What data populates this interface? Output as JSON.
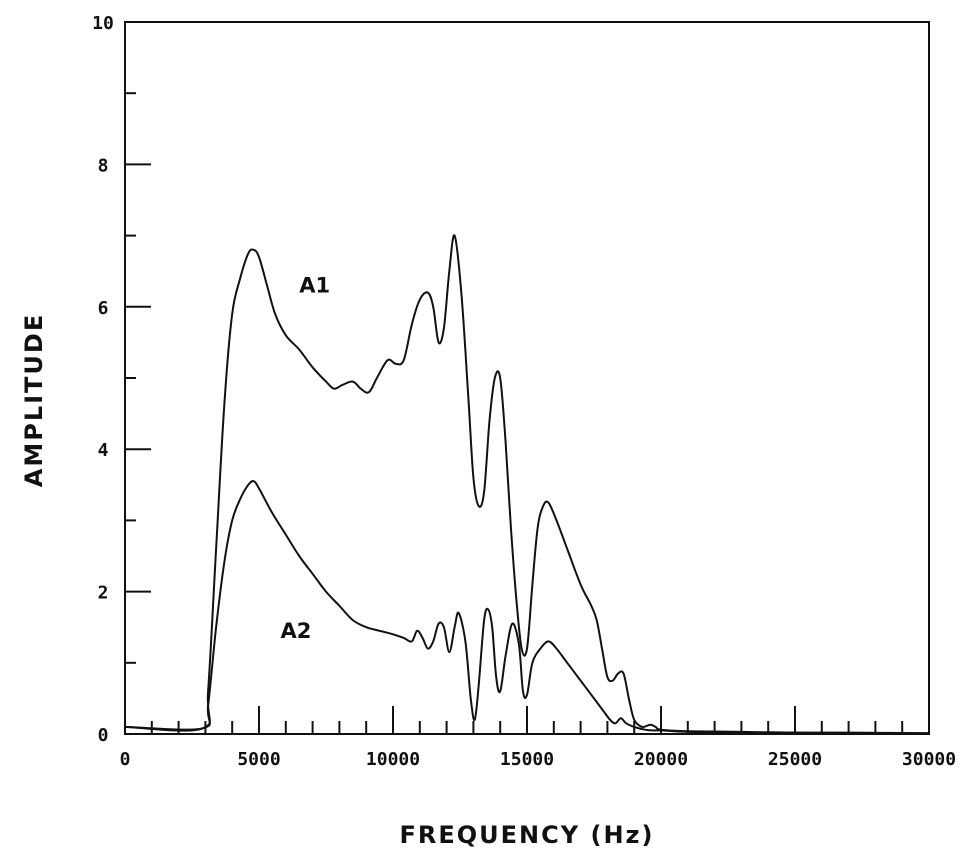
{
  "chart_data": {
    "type": "line",
    "title": "",
    "xlabel": "FREQUENCY (Hz)",
    "ylabel": "AMPLITUDE",
    "xlim": [
      0,
      30000
    ],
    "ylim": [
      0,
      10
    ],
    "x_major_ticks": [
      0,
      5000,
      10000,
      15000,
      20000,
      25000,
      30000
    ],
    "x_tick_labels": [
      "0",
      "5000",
      "10000",
      "15000",
      "20000",
      "25000",
      "30000"
    ],
    "x_minor_step": 1000,
    "y_major_ticks": [
      0,
      2,
      4,
      6,
      8,
      10
    ],
    "y_tick_labels": [
      "0",
      "2",
      "4",
      "6",
      "8",
      "10"
    ],
    "y_minor_step": 1,
    "grid": false,
    "series": [
      {
        "name": "A1",
        "label_at": [
          6500,
          6.2
        ],
        "x": [
          0,
          2900,
          3100,
          3400,
          3700,
          4000,
          4300,
          4600,
          4800,
          5000,
          5300,
          5600,
          6000,
          6500,
          7000,
          7500,
          7800,
          8100,
          8500,
          8800,
          9100,
          9400,
          9800,
          10100,
          10400,
          10700,
          11000,
          11300,
          11500,
          11700,
          11900,
          12100,
          12300,
          12550,
          12800,
          13000,
          13200,
          13400,
          13600,
          13800,
          14000,
          14200,
          14400,
          14600,
          14800,
          15000,
          15200,
          15400,
          15600,
          15800,
          16100,
          16500,
          17000,
          17400,
          17600,
          17800,
          18000,
          18200,
          18400,
          18600,
          18800,
          19000,
          19300,
          19600,
          19800,
          20000,
          21000,
          23000,
          25000,
          27000,
          30000
        ],
        "y": [
          0.1,
          0.08,
          0.6,
          2.6,
          4.6,
          5.9,
          6.4,
          6.75,
          6.8,
          6.7,
          6.3,
          5.9,
          5.6,
          5.4,
          5.15,
          4.95,
          4.85,
          4.9,
          4.95,
          4.85,
          4.8,
          5.0,
          5.25,
          5.2,
          5.25,
          5.75,
          6.1,
          6.2,
          6.0,
          5.5,
          5.7,
          6.5,
          7.0,
          6.2,
          4.8,
          3.6,
          3.2,
          3.4,
          4.4,
          5.0,
          5.0,
          4.1,
          2.9,
          1.9,
          1.2,
          1.2,
          2.1,
          2.9,
          3.2,
          3.25,
          3.0,
          2.6,
          2.1,
          1.8,
          1.6,
          1.2,
          0.8,
          0.75,
          0.85,
          0.85,
          0.5,
          0.2,
          0.1,
          0.13,
          0.1,
          0.06,
          0.04,
          0.03,
          0.02,
          0.02,
          0.01
        ]
      },
      {
        "name": "A2",
        "label_at": [
          5800,
          1.35
        ],
        "x": [
          0,
          2900,
          3100,
          3400,
          3700,
          4000,
          4300,
          4600,
          4800,
          5000,
          5500,
          6000,
          6500,
          7000,
          7500,
          8000,
          8500,
          9000,
          9500,
          10000,
          10400,
          10700,
          10900,
          11100,
          11300,
          11500,
          11700,
          11900,
          12100,
          12300,
          12450,
          12700,
          12900,
          13050,
          13200,
          13400,
          13550,
          13700,
          13850,
          14000,
          14200,
          14450,
          14700,
          14850,
          15000,
          15200,
          15500,
          15800,
          16100,
          16500,
          17000,
          17400,
          17800,
          18100,
          18300,
          18500,
          18700,
          19000,
          19400,
          19700,
          20000,
          21000,
          23000,
          25000,
          27000,
          30000
        ],
        "y": [
          0.1,
          0.08,
          0.4,
          1.5,
          2.4,
          3.0,
          3.3,
          3.5,
          3.55,
          3.45,
          3.1,
          2.8,
          2.5,
          2.25,
          2.0,
          1.8,
          1.6,
          1.5,
          1.45,
          1.4,
          1.35,
          1.3,
          1.45,
          1.35,
          1.2,
          1.3,
          1.55,
          1.5,
          1.15,
          1.5,
          1.7,
          1.3,
          0.5,
          0.2,
          0.7,
          1.6,
          1.75,
          1.5,
          0.8,
          0.6,
          1.1,
          1.55,
          1.25,
          0.6,
          0.55,
          1.0,
          1.2,
          1.3,
          1.2,
          1.0,
          0.75,
          0.55,
          0.35,
          0.2,
          0.15,
          0.22,
          0.15,
          0.1,
          0.06,
          0.05,
          0.05,
          0.03,
          0.02,
          0.02,
          0.01,
          0.01
        ]
      }
    ]
  }
}
